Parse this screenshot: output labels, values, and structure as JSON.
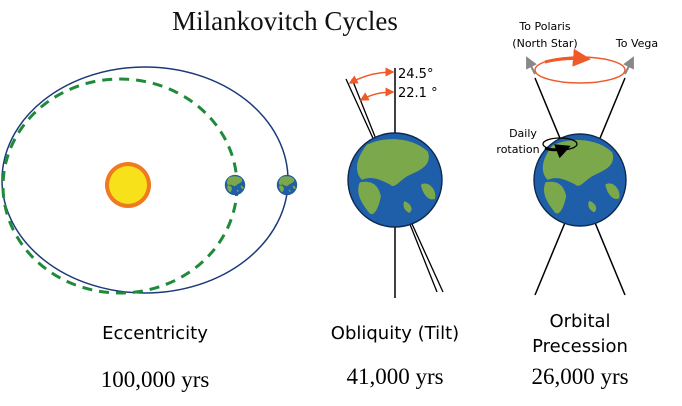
{
  "title": "Milankovitch Cycles",
  "eccentricity": {
    "label": "Eccentricity",
    "period": "100,000 yrs"
  },
  "obliquity": {
    "label": "Obliquity (Tilt)",
    "period": "41,000 yrs",
    "max_angle": "24.5°",
    "min_angle": "22.1 °"
  },
  "precession": {
    "label_line1": "Orbital",
    "label_line2": "Precession",
    "period": "26,000 yrs",
    "polaris_line1": "To Polaris",
    "polaris_line2": "(North Star)",
    "vega": "To Vega",
    "rotation_line1": "Daily",
    "rotation_line2": "rotation"
  },
  "colors": {
    "orbit": "#1a3a7a",
    "dashed_orbit": "#1e8a3a",
    "sun": "#f7e11a",
    "arrow": "#f05a28",
    "ocean": "#1f5ea8",
    "land": "#7aa84a"
  }
}
